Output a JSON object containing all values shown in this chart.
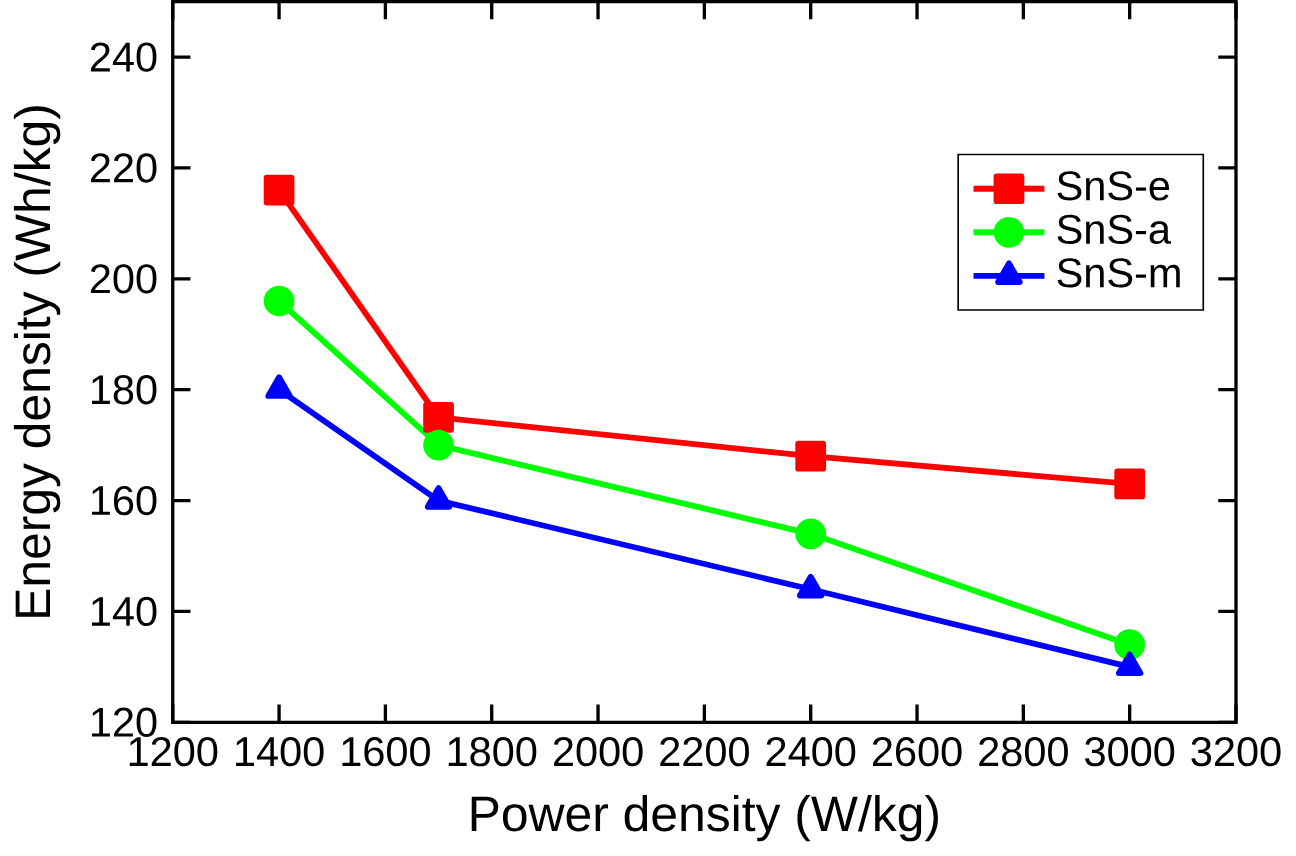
{
  "chart_data": {
    "type": "line",
    "xlabel": "Power density (W/kg)",
    "ylabel": "Energy density (Wh/kg)",
    "x": [
      1400,
      1700,
      2400,
      3000
    ],
    "series": [
      {
        "name": "SnS-e",
        "color": "#ff0000",
        "marker": "square",
        "values": [
          216,
          175,
          168,
          163
        ]
      },
      {
        "name": "SnS-a",
        "color": "#00ff00",
        "marker": "circle",
        "values": [
          196,
          170,
          154,
          134
        ]
      },
      {
        "name": "SnS-m",
        "color": "#0000ff",
        "marker": "triangle",
        "values": [
          180,
          160,
          144,
          130
        ]
      }
    ],
    "xlim": [
      1200,
      3200
    ],
    "xticks": [
      1200,
      1400,
      1600,
      1800,
      2000,
      2200,
      2400,
      2600,
      2800,
      3000,
      3200
    ],
    "ylim": [
      120,
      250
    ],
    "yticks": [
      120,
      140,
      160,
      180,
      200,
      220,
      240
    ],
    "legend": "right",
    "grid": false,
    "line_style": "solid"
  }
}
